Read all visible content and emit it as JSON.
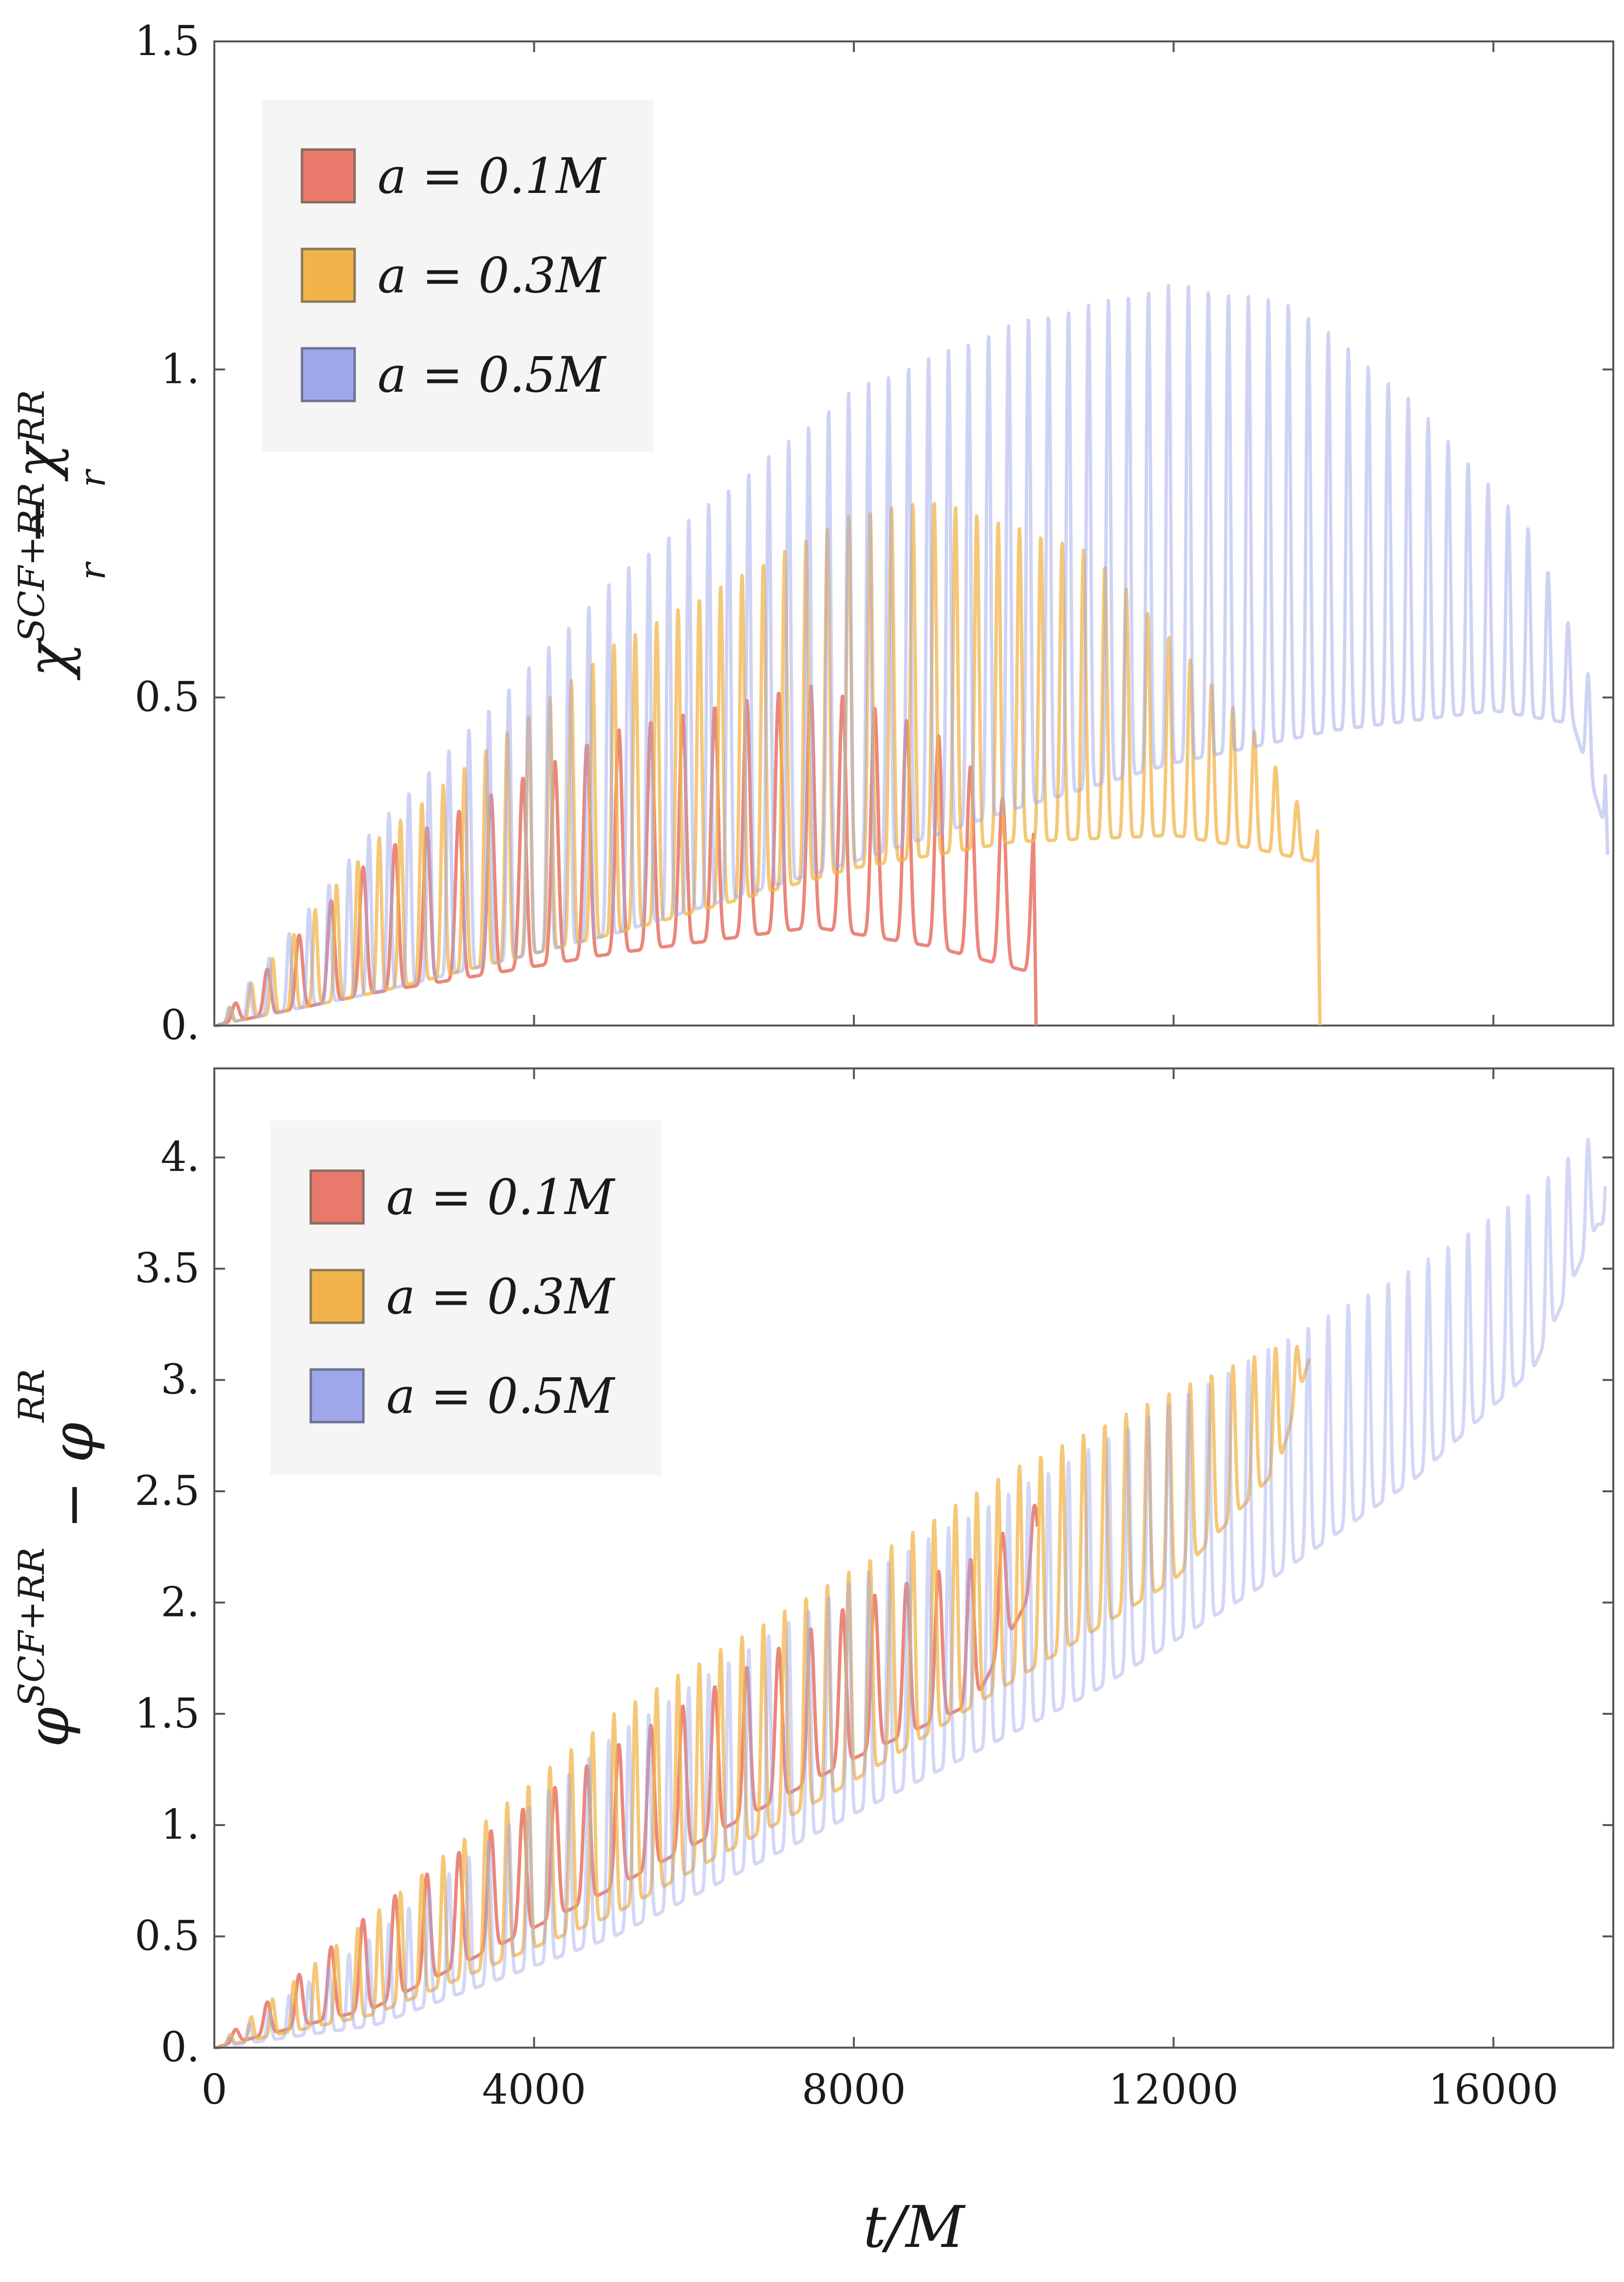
{
  "chart_data": [
    {
      "type": "line",
      "panel": "top",
      "ylabel": "χ_r^{SCF+RR} − χ_r^{RR}",
      "xlabel": "",
      "xlim": [
        0,
        17500
      ],
      "ylim": [
        0,
        1.5
      ],
      "x_ticks": [
        4000,
        8000,
        12000,
        16000
      ],
      "y_ticks": [
        0,
        0.5,
        1.0,
        1.5
      ],
      "y_tick_labels": [
        "0.",
        "0.5",
        "1.",
        "1.5"
      ],
      "legend_position": "top-left",
      "series": [
        {
          "name": "a = 0.1M",
          "color": "#e97a6b",
          "opacity": 0.9,
          "t_end": 10250,
          "period": 400,
          "envelope_peak": [
            [
              0,
              0
            ],
            [
              2000,
              0.26
            ],
            [
              5000,
              0.45
            ],
            [
              7500,
              0.52
            ],
            [
              9000,
              0.45
            ],
            [
              10250,
              0.3
            ]
          ],
          "envelope_base": [
            [
              0,
              0
            ],
            [
              2000,
              0.05
            ],
            [
              5000,
              0.11
            ],
            [
              7500,
              0.15
            ],
            [
              9000,
              0.12
            ],
            [
              10250,
              0.08
            ]
          ],
          "final_drop_to": 0
        },
        {
          "name": "a = 0.3M",
          "color": "#f2b44a",
          "opacity": 0.75,
          "t_end": 13800,
          "period": 267,
          "envelope_peak": [
            [
              0,
              0
            ],
            [
              2000,
              0.28
            ],
            [
              5000,
              0.58
            ],
            [
              8000,
              0.78
            ],
            [
              9000,
              0.8
            ],
            [
              11000,
              0.72
            ],
            [
              13000,
              0.45
            ],
            [
              13750,
              0.3
            ]
          ],
          "envelope_base": [
            [
              0,
              0
            ],
            [
              2000,
              0.05
            ],
            [
              5000,
              0.14
            ],
            [
              8000,
              0.24
            ],
            [
              10000,
              0.28
            ],
            [
              12000,
              0.29
            ],
            [
              13000,
              0.27
            ],
            [
              13750,
              0.25
            ]
          ],
          "final_drop_to": 0
        },
        {
          "name": "a = 0.5M",
          "color": "#9ea7ea",
          "opacity": 0.5,
          "t_end": 17400,
          "period": 250,
          "envelope_peak": [
            [
              0,
              0
            ],
            [
              2000,
              0.3
            ],
            [
              5000,
              0.68
            ],
            [
              8000,
              0.97
            ],
            [
              10000,
              1.07
            ],
            [
              12000,
              1.13
            ],
            [
              13500,
              1.1
            ],
            [
              15000,
              0.95
            ],
            [
              16500,
              0.75
            ],
            [
              17300,
              0.5
            ]
          ],
          "envelope_base": [
            [
              0,
              0
            ],
            [
              2000,
              0.05
            ],
            [
              5000,
              0.14
            ],
            [
              8000,
              0.25
            ],
            [
              10000,
              0.33
            ],
            [
              12000,
              0.4
            ],
            [
              14000,
              0.45
            ],
            [
              16000,
              0.48
            ],
            [
              17000,
              0.46
            ],
            [
              17400,
              0.3
            ]
          ],
          "final_drop_to": 0.26
        }
      ]
    },
    {
      "type": "line",
      "panel": "bottom",
      "ylabel": "φ^{SCF+RR} − φ^{RR}",
      "xlabel": "t/M",
      "xlim": [
        0,
        17500
      ],
      "ylim": [
        0,
        4.4
      ],
      "x_ticks": [
        0,
        4000,
        8000,
        12000,
        16000
      ],
      "x_tick_labels": [
        "0",
        "4000",
        "8000",
        "12000",
        "16000"
      ],
      "y_ticks": [
        0,
        0.5,
        1.0,
        1.5,
        2.0,
        2.5,
        3.0,
        3.5,
        4.0
      ],
      "y_tick_labels": [
        "0.",
        "0.5",
        "1.",
        "1.5",
        "2.",
        "2.5",
        "3.",
        "3.5",
        "4."
      ],
      "legend_position": "top-left",
      "series": [
        {
          "name": "a = 0.1M",
          "color": "#e97a6b",
          "opacity": 0.9,
          "t_end": 10300,
          "period": 400,
          "envelope_peak": [
            [
              0,
              0
            ],
            [
              2000,
              0.62
            ],
            [
              5000,
              1.35
            ],
            [
              8000,
              2.0
            ],
            [
              9500,
              2.2
            ],
            [
              10300,
              2.45
            ]
          ],
          "envelope_base": [
            [
              0,
              0
            ],
            [
              2000,
              0.18
            ],
            [
              5000,
              0.72
            ],
            [
              8000,
              1.3
            ],
            [
              9500,
              1.55
            ],
            [
              10300,
              2.1
            ]
          ]
        },
        {
          "name": "a = 0.3M",
          "color": "#f2b44a",
          "opacity": 0.75,
          "t_end": 13700,
          "period": 267,
          "envelope_peak": [
            [
              0,
              0
            ],
            [
              2000,
              0.6
            ],
            [
              5000,
              1.5
            ],
            [
              8000,
              2.15
            ],
            [
              10000,
              2.6
            ],
            [
              12000,
              2.95
            ],
            [
              13300,
              3.15
            ],
            [
              13700,
              3.15
            ]
          ],
          "envelope_base": [
            [
              0,
              0
            ],
            [
              2000,
              0.15
            ],
            [
              5000,
              0.6
            ],
            [
              8000,
              1.2
            ],
            [
              10000,
              1.65
            ],
            [
              12000,
              2.1
            ],
            [
              13300,
              2.6
            ],
            [
              13700,
              3.1
            ]
          ]
        },
        {
          "name": "a = 0.5M",
          "color": "#9ea7ea",
          "opacity": 0.45,
          "t_end": 17400,
          "period": 250,
          "envelope_peak": [
            [
              0,
              0
            ],
            [
              2000,
              0.5
            ],
            [
              5000,
              1.4
            ],
            [
              8000,
              2.1
            ],
            [
              11000,
              2.7
            ],
            [
              13000,
              3.1
            ],
            [
              15000,
              3.5
            ],
            [
              16500,
              3.85
            ],
            [
              17300,
              4.12
            ]
          ],
          "envelope_base": [
            [
              0,
              0
            ],
            [
              2000,
              0.1
            ],
            [
              5000,
              0.5
            ],
            [
              8000,
              1.05
            ],
            [
              11000,
              1.6
            ],
            [
              13000,
              2.05
            ],
            [
              15000,
              2.55
            ],
            [
              16500,
              3.05
            ],
            [
              17300,
              3.7
            ]
          ]
        }
      ]
    }
  ],
  "colors": {
    "a01": "#e97a6b",
    "a03": "#f2b44a",
    "a05": "#9ea7ea",
    "legend_bg": "#f5f5f5",
    "frame": "#555555"
  }
}
